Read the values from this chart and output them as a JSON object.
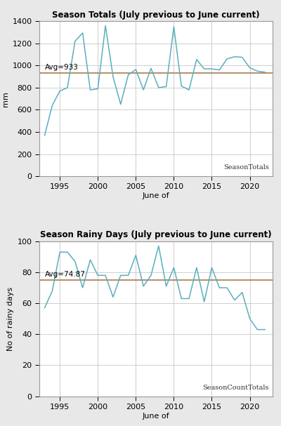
{
  "title1": "Season Totals (July previous to June current)",
  "title2": "Season Rainy Days (July previous to June current)",
  "xlabel": "June of",
  "ylabel1": "mm",
  "ylabel2": "No of rainy days",
  "label1": "SeasonTotals",
  "label2": "SeasonCountTotals",
  "avg1": 933,
  "avg1_label": "Avg=933",
  "avg2": 74.87,
  "avg2_label": "Avg=74.87",
  "years1": [
    1993,
    1994,
    1995,
    1996,
    1997,
    1998,
    1999,
    2000,
    2001,
    2002,
    2003,
    2004,
    2005,
    2006,
    2007,
    2008,
    2009,
    2010,
    2011,
    2012,
    2013,
    2014,
    2015,
    2016,
    2017,
    2018,
    2019,
    2020,
    2021,
    2022
  ],
  "values1": [
    370,
    640,
    770,
    800,
    1220,
    1295,
    780,
    790,
    1360,
    900,
    650,
    915,
    965,
    780,
    975,
    800,
    810,
    1350,
    815,
    780,
    1055,
    970,
    970,
    960,
    1060,
    1080,
    1075,
    980,
    950,
    940
  ],
  "years2": [
    1993,
    1994,
    1995,
    1996,
    1997,
    1998,
    1999,
    2000,
    2001,
    2002,
    2003,
    2004,
    2005,
    2006,
    2007,
    2008,
    2009,
    2010,
    2011,
    2012,
    2013,
    2014,
    2015,
    2016,
    2017,
    2018,
    2019,
    2020,
    2021,
    2022
  ],
  "values2": [
    57,
    68,
    93,
    93,
    87,
    70,
    88,
    78,
    78,
    64,
    78,
    78,
    91,
    71,
    78,
    97,
    71,
    83,
    63,
    63,
    83,
    61,
    83,
    70,
    70,
    62,
    67,
    50,
    43,
    43
  ],
  "line_color": "#5aafbf",
  "avg_line_color": "#a07040",
  "bg_color": "#e8e8e8",
  "plot_bg_color": "#ffffff",
  "grid_color": "#c8c8c8",
  "ylim1": [
    0,
    1400
  ],
  "ylim2": [
    0,
    100
  ],
  "yticks1": [
    0,
    200,
    400,
    600,
    800,
    1000,
    1200,
    1400
  ],
  "yticks2": [
    0,
    20,
    40,
    60,
    80,
    100
  ],
  "xticks": [
    1995,
    2000,
    2005,
    2010,
    2015,
    2020
  ],
  "xlim": [
    1992.3,
    2023.0
  ]
}
